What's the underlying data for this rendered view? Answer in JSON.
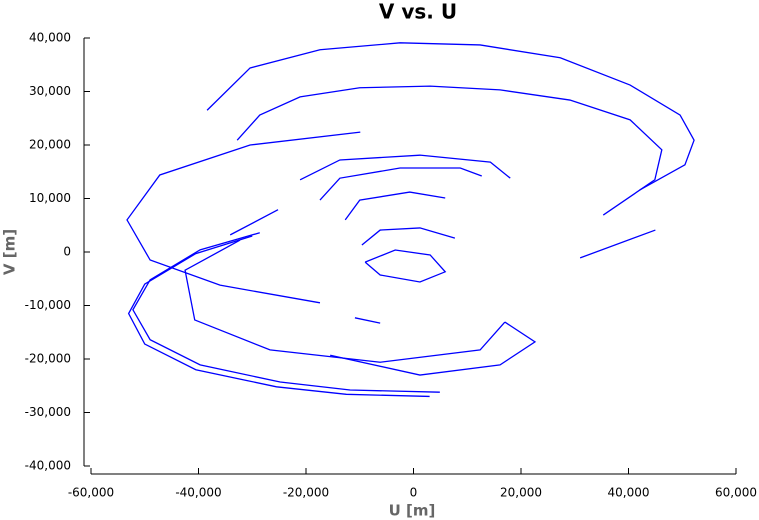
{
  "chart_data": {
    "type": "line",
    "title": "V vs. U",
    "x_label": "U [m]",
    "y_label": "V [m]",
    "xlim": [
      -60000,
      60000
    ],
    "ylim": [
      -40000,
      40000
    ],
    "xticks": [
      {
        "value": -60000,
        "label": "-60,000"
      },
      {
        "value": -40000,
        "label": "-40,000"
      },
      {
        "value": -20000,
        "label": "-20,000"
      },
      0,
      {
        "value": 20000,
        "label": "20,000"
      },
      {
        "value": 40000,
        "label": "40,000"
      },
      {
        "value": 60000,
        "label": "60,000"
      }
    ],
    "yticks": [
      {
        "value": -40000,
        "label": "-40,000"
      },
      {
        "value": -30000,
        "label": "-30,000"
      },
      {
        "value": -20000,
        "label": "-20,000"
      },
      {
        "value": -10000,
        "label": "-10,000"
      },
      0,
      {
        "value": 10000,
        "label": "10,000"
      },
      {
        "value": 20000,
        "label": "20,000"
      },
      {
        "value": 30000,
        "label": "30,000"
      },
      {
        "value": 40000,
        "label": "40,000"
      }
    ],
    "grid": false,
    "series": [
      {
        "color": "#0000ff",
        "x": [
          -38400,
          -30400,
          -17400,
          -2500,
          12400,
          27300,
          40300,
          49600,
          52200,
          50500,
          42100
        ],
        "values": [
          26500,
          34400,
          37800,
          39100,
          38700,
          36300,
          31200,
          25600,
          20900,
          16300,
          11600
        ]
      },
      {
        "color": "#0000ff",
        "x": [
          -32800,
          -28600,
          -21100,
          -10000,
          3100,
          16100,
          29100,
          40300,
          46200,
          44900,
          35300
        ],
        "values": [
          20900,
          25600,
          29000,
          30700,
          31000,
          30300,
          28400,
          24700,
          19100,
          13500,
          6900
        ]
      },
      {
        "color": "#0000ff",
        "x": [
          -9900,
          -30400,
          -47200,
          -53300,
          -49000,
          -36000,
          -17400
        ],
        "values": [
          22400,
          20000,
          14400,
          6000,
          -1500,
          -6200,
          -9500
        ]
      },
      {
        "color": "#0000ff",
        "x": [
          -28600,
          -39700,
          -49000,
          -52200,
          -49000,
          -39700,
          -24800,
          -11800,
          4900
        ],
        "values": [
          3600,
          400,
          -5200,
          -10800,
          -16400,
          -21100,
          -24300,
          -25800,
          -26200
        ]
      },
      {
        "color": "#0000ff",
        "x": [
          -30000,
          -40500,
          -50000,
          -53000,
          -50000,
          -40500,
          -25500,
          -12500,
          3000
        ],
        "values": [
          3000,
          -300,
          -6000,
          -11500,
          -17200,
          -22000,
          -25200,
          -26600,
          -27000
        ]
      },
      {
        "color": "#0000ff",
        "x": [
          -15500,
          1200,
          16100,
          22600,
          17000
        ],
        "values": [
          -19300,
          -23000,
          -21100,
          -16800,
          -13100
        ]
      },
      {
        "color": "#0000ff",
        "x": [
          -32300,
          -42500,
          -40700,
          -26700,
          -6200,
          12400,
          17000
        ],
        "values": [
          2200,
          -3400,
          -12700,
          -18300,
          -20600,
          -18300,
          -13100
        ]
      },
      {
        "color": "#0000ff",
        "x": [
          -21100,
          -13700,
          1200,
          14300,
          18000
        ],
        "values": [
          13500,
          17200,
          18100,
          16800,
          13800
        ]
      },
      {
        "color": "#0000ff",
        "x": [
          -17400,
          -13700,
          -2500,
          8700,
          12700
        ],
        "values": [
          9700,
          13800,
          15700,
          15700,
          14200
        ]
      },
      {
        "color": "#0000ff",
        "x": [
          -12700,
          -10000,
          -700,
          5900
        ],
        "values": [
          6000,
          9700,
          11200,
          10100
        ]
      },
      {
        "color": "#0000ff",
        "x": [
          -9600,
          -6200,
          1200,
          7700
        ],
        "values": [
          1300,
          4100,
          4500,
          2600
        ]
      },
      {
        "color": "#0000ff",
        "x": [
          -9000,
          -6200,
          1200,
          5900,
          3100,
          -3400,
          -9000
        ],
        "values": [
          -1900,
          -4300,
          -5600,
          -3700,
          -560,
          370,
          -1900
        ]
      },
      {
        "color": "#0000ff",
        "x": [
          31000,
          45000
        ],
        "values": [
          -1100,
          4100
        ]
      },
      {
        "color": "#0000ff",
        "x": [
          -34100,
          -25200
        ],
        "values": [
          3200,
          7900
        ]
      },
      {
        "color": "#0000ff",
        "x": [
          -10900,
          -6200
        ],
        "values": [
          -12300,
          -13300
        ]
      }
    ]
  }
}
